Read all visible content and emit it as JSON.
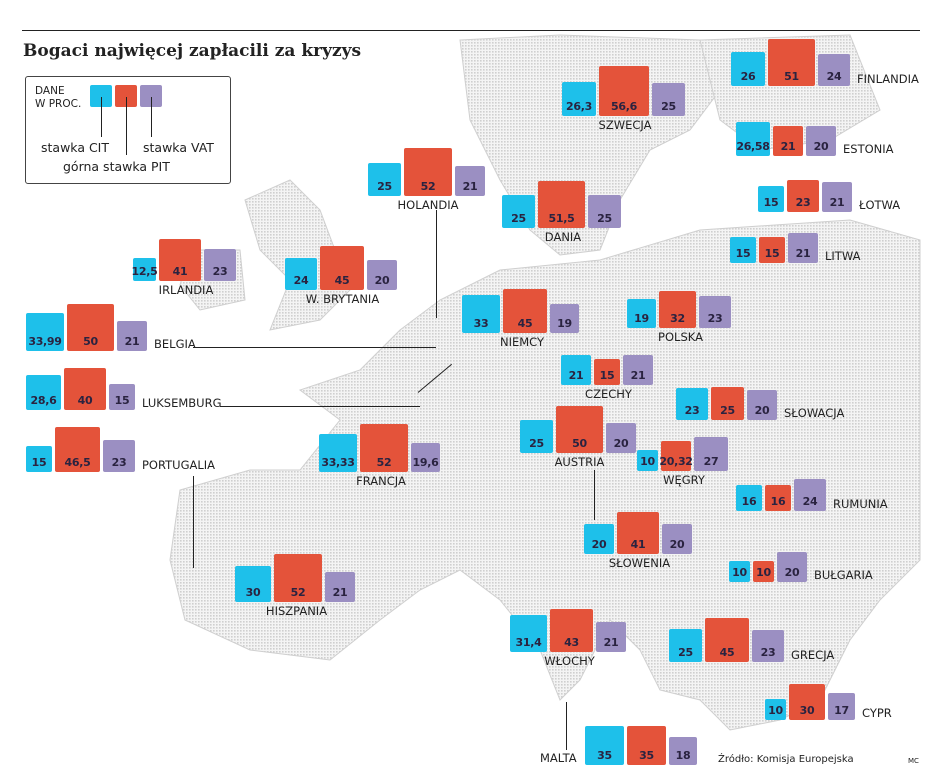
{
  "title": "Bogaci najwięcej zapłacili za kryzys",
  "legend": {
    "units": "DANE\nW PROC.",
    "cit": "stawka CIT",
    "pit": "górna stawka PIT",
    "vat": "stawka VAT"
  },
  "colors": {
    "cit": "#1ec0ea",
    "pit": "#e4533a",
    "vat": "#9b8fc2",
    "map": "#d9d9d9"
  },
  "source": "Źródło: Komisja Europejska",
  "credit": "MC",
  "countries": [
    {
      "name": "FINLANDIA",
      "cit": "26",
      "pit": "51",
      "vat": "24"
    },
    {
      "name": "SZWECJA",
      "cit": "26,3",
      "pit": "56,6",
      "vat": "25"
    },
    {
      "name": "ESTONIA",
      "cit": "26,58",
      "pit": "21",
      "vat": "20"
    },
    {
      "name": "ŁOTWA",
      "cit": "15",
      "pit": "23",
      "vat": "21"
    },
    {
      "name": "LITWA",
      "cit": "15",
      "pit": "15",
      "vat": "21"
    },
    {
      "name": "HOLANDIA",
      "cit": "25",
      "pit": "52",
      "vat": "21"
    },
    {
      "name": "DANIA",
      "cit": "25",
      "pit": "51,5",
      "vat": "25"
    },
    {
      "name": "IRLANDIA",
      "cit": "12,5",
      "pit": "41",
      "vat": "23"
    },
    {
      "name": "W. BRYTANIA",
      "cit": "24",
      "pit": "45",
      "vat": "20"
    },
    {
      "name": "BELGIA",
      "cit": "33,99",
      "pit": "50",
      "vat": "21"
    },
    {
      "name": "NIEMCY",
      "cit": "33",
      "pit": "45",
      "vat": "19"
    },
    {
      "name": "POLSKA",
      "cit": "19",
      "pit": "32",
      "vat": "23"
    },
    {
      "name": "LUKSEMBURG",
      "cit": "28,6",
      "pit": "40",
      "vat": "15"
    },
    {
      "name": "CZECHY",
      "cit": "21",
      "pit": "15",
      "vat": "21"
    },
    {
      "name": "SŁOWACJA",
      "cit": "23",
      "pit": "25",
      "vat": "20"
    },
    {
      "name": "PORTUGALIA",
      "cit": "15",
      "pit": "46,5",
      "vat": "23"
    },
    {
      "name": "FRANCJA",
      "cit": "33,33",
      "pit": "52",
      "vat": "19,6"
    },
    {
      "name": "AUSTRIA",
      "cit": "25",
      "pit": "50",
      "vat": "20"
    },
    {
      "name": "WĘGRY",
      "cit": "10",
      "pit": "20,32",
      "vat": "27"
    },
    {
      "name": "RUMUNIA",
      "cit": "16",
      "pit": "16",
      "vat": "24"
    },
    {
      "name": "SŁOWENIA",
      "cit": "20",
      "pit": "41",
      "vat": "20"
    },
    {
      "name": "BUŁGARIA",
      "cit": "10",
      "pit": "10",
      "vat": "20"
    },
    {
      "name": "HISZPANIA",
      "cit": "30",
      "pit": "52",
      "vat": "21"
    },
    {
      "name": "WŁOCHY",
      "cit": "31,4",
      "pit": "43",
      "vat": "21"
    },
    {
      "name": "GRECJA",
      "cit": "25",
      "pit": "45",
      "vat": "23"
    },
    {
      "name": "CYPR",
      "cit": "10",
      "pit": "30",
      "vat": "17"
    },
    {
      "name": "MALTA",
      "cit": "35",
      "pit": "35",
      "vat": "18"
    }
  ]
}
